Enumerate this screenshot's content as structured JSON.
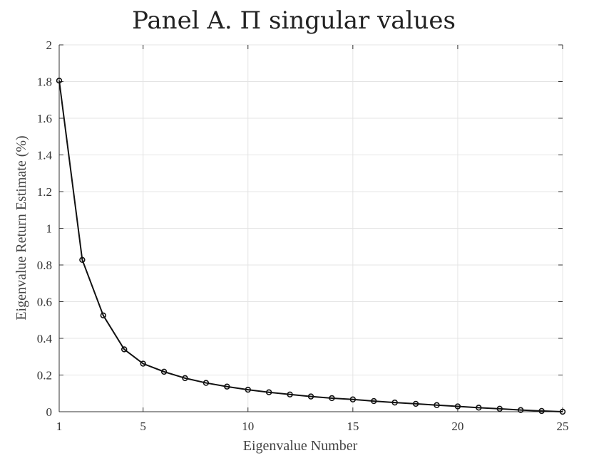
{
  "chart_data": {
    "type": "line",
    "title": "Panel A. Π singular values",
    "xlabel": "Eigenvalue Number",
    "ylabel": "Eigenvalue Return Estimate (%)",
    "xlim": [
      1,
      25
    ],
    "ylim": [
      0,
      2
    ],
    "xticks": [
      1,
      5,
      10,
      15,
      20,
      25
    ],
    "yticks": [
      0,
      0.2,
      0.4,
      0.6,
      0.8,
      1,
      1.2,
      1.4,
      1.6,
      1.8,
      2
    ],
    "grid": true,
    "x": [
      1,
      2.1,
      3.1,
      4.1,
      5,
      6,
      7,
      8,
      9,
      10,
      11,
      12,
      13,
      14,
      15,
      16,
      17,
      18,
      19,
      20,
      21,
      22,
      23,
      24,
      25
    ],
    "values": [
      1.805,
      0.828,
      0.525,
      0.34,
      0.262,
      0.218,
      0.183,
      0.157,
      0.137,
      0.12,
      0.106,
      0.094,
      0.083,
      0.074,
      0.067,
      0.058,
      0.05,
      0.043,
      0.036,
      0.029,
      0.022,
      0.016,
      0.009,
      0.004,
      0.0
    ]
  }
}
